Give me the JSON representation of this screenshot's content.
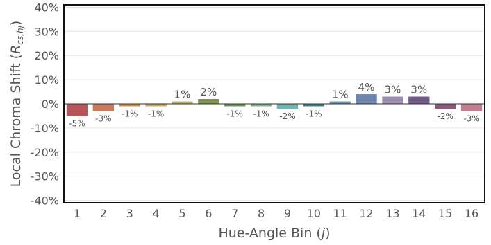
{
  "chart_data": {
    "type": "bar",
    "categories": [
      "1",
      "2",
      "3",
      "4",
      "5",
      "6",
      "7",
      "8",
      "9",
      "10",
      "11",
      "12",
      "13",
      "14",
      "15",
      "16"
    ],
    "values": [
      -5,
      -3,
      -1,
      -1,
      1,
      2,
      -1,
      -1,
      -2,
      -1,
      1,
      4,
      3,
      3,
      -2,
      -3
    ],
    "data_labels": [
      "-5%",
      "-3%",
      "-1%",
      "-1%",
      "1%",
      "2%",
      "-1%",
      "-1%",
      "-2%",
      "-1%",
      "1%",
      "4%",
      "3%",
      "3%",
      "-2%",
      "-3%"
    ],
    "colors": [
      "#b9545a",
      "#c97a5a",
      "#c88f52",
      "#c3a66a",
      "#b7aa6c",
      "#7f8f4f",
      "#6b8f63",
      "#7fb28f",
      "#6fb4b2",
      "#3f7c7a",
      "#6c8fa9",
      "#6d84ad",
      "#9b8dae",
      "#6e5a84",
      "#8a5878",
      "#c27e8e"
    ],
    "title": "",
    "xlabel": {
      "prefix": "Hue-Angle Bin (",
      "var": "j",
      "suffix": ")"
    },
    "ylabel": {
      "prefix": "Local Chroma Shift (",
      "var": "R",
      "sub": "cs,hj",
      "suffix": ")"
    },
    "ylim": [
      -41,
      41
    ],
    "yticks": [
      -40,
      -30,
      -20,
      -10,
      0,
      10,
      20,
      30,
      40
    ],
    "ytick_labels": [
      "-40%",
      "-30%",
      "-20%",
      "-10%",
      "0%",
      "10%",
      "20%",
      "30%",
      "40%"
    ],
    "grid": true,
    "legend": "none"
  }
}
